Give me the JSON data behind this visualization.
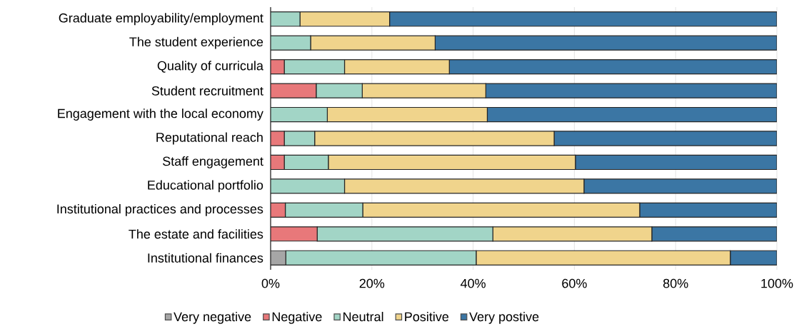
{
  "chart_data": {
    "type": "bar",
    "orientation": "horizontal",
    "stacked": true,
    "categories": [
      "Graduate employability/employment",
      "The student experience",
      "Quality of curricula",
      "Student recruitment",
      "Engagement with the local economy",
      "Reputational reach",
      "Staff engagement",
      "Educational portfolio",
      "Institutional practices and processes",
      "The estate and facilities",
      "Institutional finances"
    ],
    "series": [
      {
        "name": "Very negative",
        "color": "#a6a6a6",
        "values": [
          0,
          0,
          0,
          0,
          0,
          0,
          0,
          0,
          0,
          0,
          3.0
        ]
      },
      {
        "name": "Negative",
        "color": "#e8787a",
        "values": [
          0,
          0,
          2.7,
          9.0,
          0,
          2.7,
          2.7,
          0,
          2.9,
          9.2,
          0
        ]
      },
      {
        "name": "Neutral",
        "color": "#a2d5c6",
        "values": [
          5.8,
          7.9,
          11.9,
          9.1,
          11.2,
          6.0,
          8.7,
          14.6,
          15.3,
          34.7,
          37.6
        ]
      },
      {
        "name": "Positive",
        "color": "#f0d48c",
        "values": [
          17.7,
          24.6,
          20.7,
          24.4,
          31.6,
          47.3,
          48.8,
          47.3,
          54.7,
          31.4,
          50.2
        ]
      },
      {
        "name": "Very postive",
        "color": "#3b76a4",
        "values": [
          76.5,
          67.5,
          64.7,
          57.5,
          57.2,
          44.0,
          39.8,
          38.1,
          27.1,
          24.7,
          9.2
        ]
      }
    ],
    "xlim": [
      0,
      100
    ],
    "xticks": [
      {
        "value": 0,
        "label": "0%"
      },
      {
        "value": 20,
        "label": "20%"
      },
      {
        "value": 40,
        "label": "40%"
      },
      {
        "value": 60,
        "label": "60%"
      },
      {
        "value": 80,
        "label": "80%"
      },
      {
        "value": 100,
        "label": "100%"
      }
    ],
    "grid": "x",
    "legend": "bottom"
  }
}
